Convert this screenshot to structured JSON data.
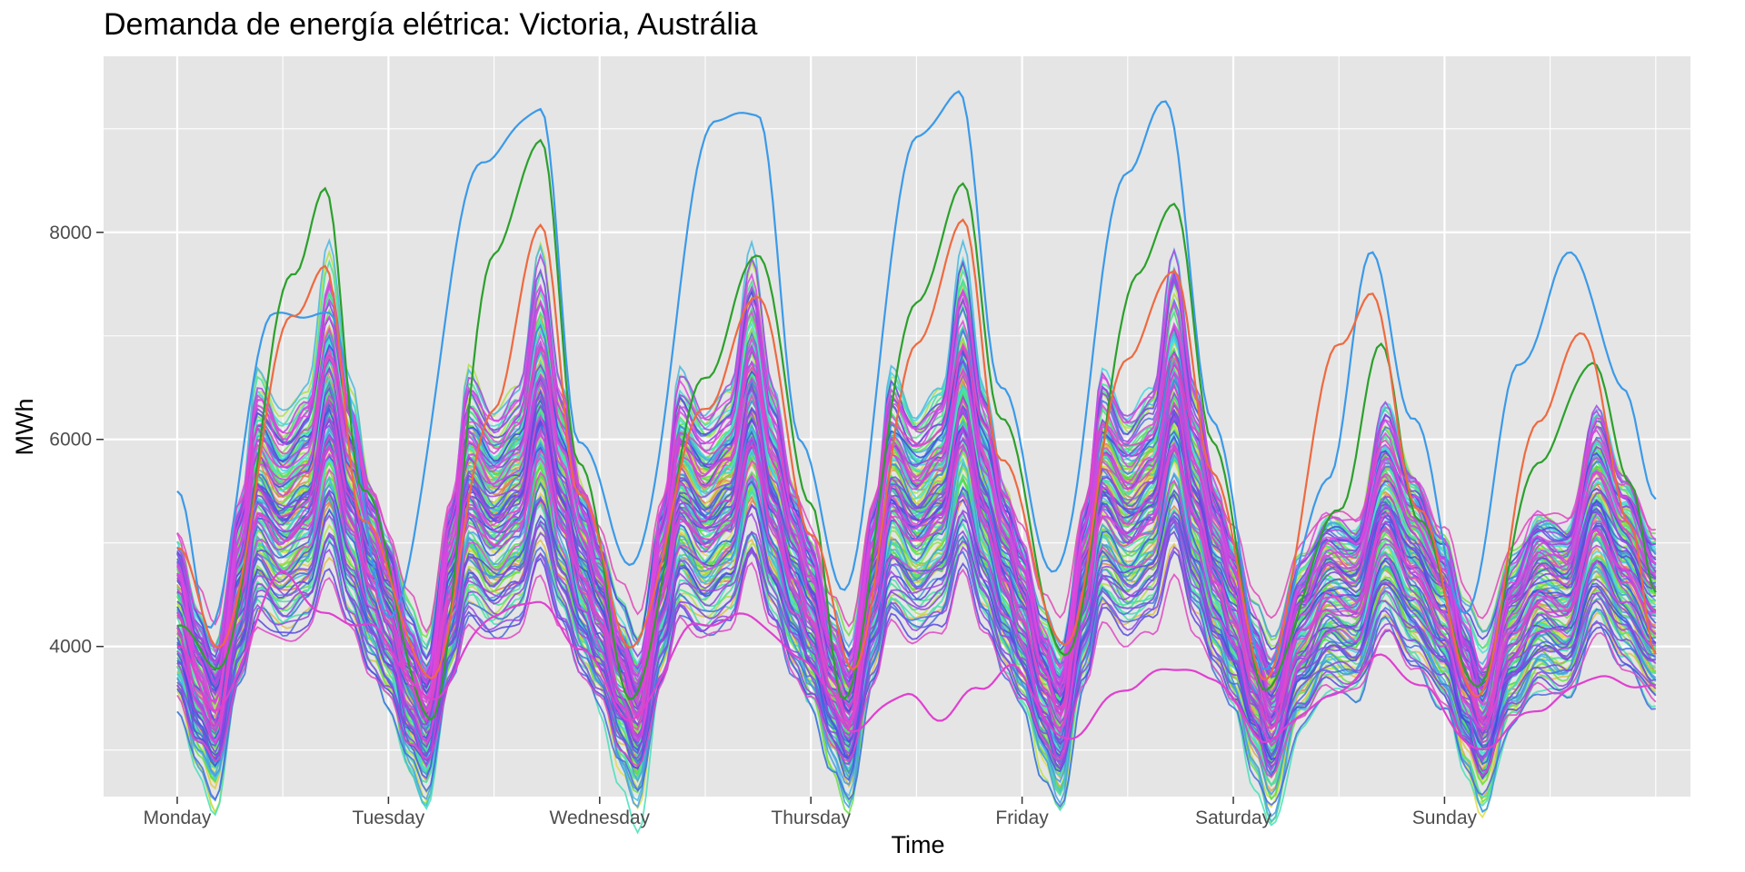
{
  "chart_data": {
    "type": "line",
    "title": "Demanda de energía elétrica: Victoria, Austrália",
    "xlabel": "Time",
    "ylabel": "MWh",
    "x_ticks": [
      "Monday",
      "Tuesday",
      "Wednesday",
      "Thursday",
      "Friday",
      "Saturday",
      "Sunday"
    ],
    "x_range_days": [
      -0.34,
      7.0
    ],
    "ylim": [
      2550,
      9700
    ],
    "y_ticks": [
      4000,
      6000,
      8000
    ],
    "grid": true,
    "legend": "none",
    "series_count": 150,
    "typical_week_profile": {
      "weekday": [
        {
          "t": 0.0,
          "v": 4300
        },
        {
          "t": 0.1,
          "v": 3600
        },
        {
          "t": 0.18,
          "v": 3250
        },
        {
          "t": 0.3,
          "v": 4600
        },
        {
          "t": 0.38,
          "v": 5500
        },
        {
          "t": 0.5,
          "v": 5200
        },
        {
          "t": 0.62,
          "v": 5400
        },
        {
          "t": 0.72,
          "v": 6300
        },
        {
          "t": 0.82,
          "v": 5400
        },
        {
          "t": 0.92,
          "v": 4700
        },
        {
          "t": 1.0,
          "v": 4300
        }
      ],
      "weekend": [
        {
          "t": 0.0,
          "v": 4300
        },
        {
          "t": 0.1,
          "v": 3600
        },
        {
          "t": 0.18,
          "v": 3200
        },
        {
          "t": 0.32,
          "v": 4100
        },
        {
          "t": 0.45,
          "v": 4500
        },
        {
          "t": 0.58,
          "v": 4400
        },
        {
          "t": 0.72,
          "v": 5300
        },
        {
          "t": 0.85,
          "v": 4800
        },
        {
          "t": 1.0,
          "v": 4300
        }
      ]
    },
    "highlight_series": [
      {
        "color": "#3b9ae8",
        "points": [
          [
            0,
            5500
          ],
          [
            0.15,
            4200
          ],
          [
            0.45,
            7200
          ],
          [
            0.72,
            7200
          ],
          [
            1.0,
            4300
          ],
          [
            1.45,
            8700
          ],
          [
            1.72,
            9200
          ],
          [
            1.9,
            6000
          ],
          [
            2.15,
            4800
          ],
          [
            2.55,
            9100
          ],
          [
            2.75,
            9150
          ],
          [
            2.95,
            6000
          ],
          [
            3.15,
            4550
          ],
          [
            3.5,
            8900
          ],
          [
            3.7,
            9350
          ],
          [
            3.9,
            6500
          ],
          [
            4.15,
            4700
          ],
          [
            4.5,
            8600
          ],
          [
            4.68,
            9280
          ],
          [
            4.9,
            6200
          ],
          [
            5.15,
            3800
          ],
          [
            5.45,
            5600
          ],
          [
            5.65,
            7800
          ],
          [
            5.85,
            6200
          ],
          [
            6.1,
            4300
          ],
          [
            6.35,
            6700
          ],
          [
            6.6,
            7800
          ],
          [
            6.85,
            6500
          ],
          [
            7.0,
            5400
          ]
        ]
      },
      {
        "color": "#2ca02c",
        "points": [
          [
            0,
            4200
          ],
          [
            0.2,
            3800
          ],
          [
            0.55,
            7600
          ],
          [
            0.7,
            8400
          ],
          [
            0.88,
            5500
          ],
          [
            1.2,
            3300
          ],
          [
            1.5,
            7800
          ],
          [
            1.72,
            8900
          ],
          [
            1.9,
            5800
          ],
          [
            2.15,
            3500
          ],
          [
            2.5,
            6600
          ],
          [
            2.75,
            7800
          ],
          [
            3.0,
            5400
          ],
          [
            3.15,
            3500
          ],
          [
            3.5,
            7300
          ],
          [
            3.72,
            8450
          ],
          [
            3.9,
            6200
          ],
          [
            4.2,
            3900
          ],
          [
            4.55,
            7600
          ],
          [
            4.72,
            8300
          ],
          [
            4.9,
            6000
          ],
          [
            5.15,
            3600
          ],
          [
            5.5,
            5300
          ],
          [
            5.7,
            6900
          ],
          [
            5.88,
            5200
          ],
          [
            6.15,
            3600
          ],
          [
            6.45,
            5800
          ],
          [
            6.7,
            6750
          ],
          [
            6.88,
            5600
          ],
          [
            7.0,
            4500
          ]
        ]
      },
      {
        "color": "#ee6a40",
        "points": [
          [
            0,
            4950
          ],
          [
            0.2,
            4000
          ],
          [
            0.55,
            7200
          ],
          [
            0.7,
            7650
          ],
          [
            0.88,
            5200
          ],
          [
            1.2,
            3700
          ],
          [
            1.5,
            6300
          ],
          [
            1.72,
            8080
          ],
          [
            1.9,
            5500
          ],
          [
            2.15,
            4000
          ],
          [
            2.5,
            6300
          ],
          [
            2.75,
            7400
          ],
          [
            3.0,
            5100
          ],
          [
            3.2,
            3800
          ],
          [
            3.5,
            6900
          ],
          [
            3.72,
            8100
          ],
          [
            3.9,
            5800
          ],
          [
            4.2,
            4000
          ],
          [
            4.5,
            6800
          ],
          [
            4.72,
            7650
          ],
          [
            4.9,
            5700
          ],
          [
            5.15,
            3700
          ],
          [
            5.5,
            6900
          ],
          [
            5.65,
            7400
          ],
          [
            5.88,
            5300
          ],
          [
            6.15,
            3500
          ],
          [
            6.45,
            6200
          ],
          [
            6.65,
            7050
          ],
          [
            6.88,
            5200
          ],
          [
            7.0,
            3900
          ]
        ]
      },
      {
        "color": "#e040d0",
        "points": [
          [
            0,
            4000
          ],
          [
            0.18,
            3400
          ],
          [
            0.5,
            4700
          ],
          [
            0.7,
            4300
          ],
          [
            0.9,
            4200
          ],
          [
            1.2,
            3500
          ],
          [
            1.5,
            4300
          ],
          [
            1.7,
            4450
          ],
          [
            1.9,
            4000
          ],
          [
            2.15,
            3300
          ],
          [
            2.45,
            4200
          ],
          [
            2.7,
            4300
          ],
          [
            2.95,
            3900
          ],
          [
            3.2,
            3200
          ],
          [
            3.45,
            3550
          ],
          [
            3.6,
            3300
          ],
          [
            3.8,
            3600
          ],
          [
            3.95,
            3800
          ],
          [
            4.2,
            3100
          ],
          [
            4.5,
            3600
          ],
          [
            4.7,
            3800
          ],
          [
            4.9,
            3700
          ],
          [
            5.15,
            3100
          ],
          [
            5.45,
            3500
          ],
          [
            5.7,
            3900
          ],
          [
            5.9,
            3600
          ],
          [
            6.15,
            3000
          ],
          [
            6.45,
            3400
          ],
          [
            6.7,
            3700
          ],
          [
            7.0,
            3600
          ]
        ]
      }
    ]
  }
}
